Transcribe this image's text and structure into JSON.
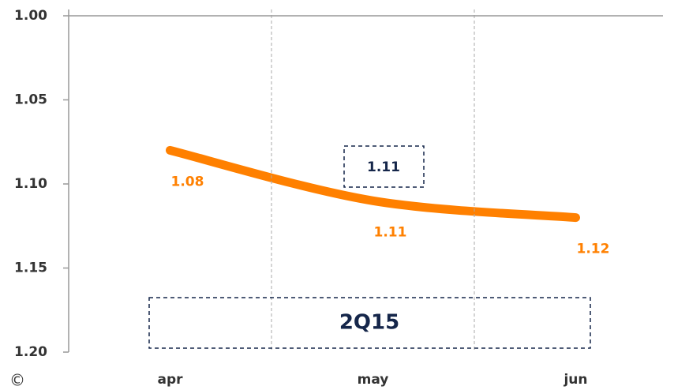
{
  "chart_data": {
    "type": "line",
    "categories": [
      "apr",
      "may",
      "jun"
    ],
    "series": [
      {
        "name": "series",
        "color": "#ff8000",
        "values": [
          1.08,
          1.11,
          1.12
        ]
      }
    ],
    "ylim": [
      1.0,
      1.2
    ],
    "y_inverted": true,
    "yticks": [
      {
        "value": 1,
        "label": "1.00"
      },
      1.05,
      {
        "value": 1.1,
        "label": "1.10"
      },
      1.15,
      {
        "value": 1.2,
        "label": "1.20"
      }
    ],
    "x_grid": true,
    "annotations": [
      "1.11",
      "2Q15",
      "©"
    ]
  }
}
